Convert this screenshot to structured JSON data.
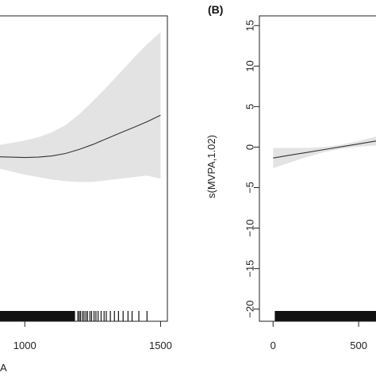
{
  "chart_data": [
    {
      "panel": "",
      "type": "line",
      "xlabel": "A",
      "ylabel": "",
      "xlim": [
        675,
        1525
      ],
      "ylim": [
        -20.5,
        17
      ],
      "x_ticks": [
        1000,
        1500
      ],
      "y_ticks": [],
      "series": [
        {
          "x": [
            680,
            750,
            800,
            850,
            900,
            950,
            1000,
            1050,
            1100,
            1150,
            1200,
            1250,
            1300,
            1350,
            1400,
            1450,
            1500
          ],
          "y": [
            -0.1,
            -0.1,
            -0.15,
            -0.2,
            -0.3,
            -0.35,
            -0.4,
            -0.35,
            -0.2,
            0.1,
            0.6,
            1.2,
            1.9,
            2.6,
            3.3,
            4.0,
            4.8
          ]
        }
      ],
      "ci_upper": [
        0.5,
        0.6,
        0.7,
        0.9,
        1.1,
        1.4,
        1.7,
        2.1,
        2.7,
        3.6,
        4.9,
        6.5,
        8.2,
        10.0,
        11.8,
        13.5,
        15.0
      ],
      "ci_lower": [
        -0.7,
        -0.8,
        -1.0,
        -1.3,
        -1.7,
        -2.1,
        -2.5,
        -2.8,
        -3.1,
        -3.3,
        -3.4,
        -3.4,
        -3.2,
        -3.0,
        -2.8,
        -2.6,
        -3.0
      ],
      "rug": [
        1195,
        1200,
        1205,
        1212,
        1218,
        1225,
        1231,
        1240,
        1246,
        1255,
        1262,
        1270,
        1281,
        1292,
        1300,
        1315,
        1330,
        1345,
        1362,
        1380,
        1395,
        1420,
        1450
      ],
      "rug_dense_range": [
        675,
        1185
      ]
    },
    {
      "panel": "(B)",
      "type": "line",
      "xlabel": "",
      "ylabel": "s(MVPA,1.02)",
      "xlim": [
        -80,
        1000
      ],
      "ylim": [
        -21.5,
        16.2
      ],
      "x_ticks": [
        0,
        500
      ],
      "y_ticks": [
        15,
        10,
        5,
        0,
        -5,
        -10,
        -15,
        -20
      ],
      "series": [
        {
          "x": [
            0,
            100,
            200,
            300,
            400,
            500,
            600,
            700,
            800
          ],
          "y": [
            -1.35,
            -1.0,
            -0.65,
            -0.3,
            0.05,
            0.4,
            0.75,
            1.1,
            1.45
          ]
        }
      ],
      "ci_upper": [
        -0.1,
        -0.1,
        -0.1,
        0.0,
        0.3,
        0.75,
        1.3,
        1.9,
        2.6
      ],
      "ci_lower": [
        -2.6,
        -1.9,
        -1.2,
        -0.6,
        -0.2,
        0.05,
        0.2,
        0.3,
        0.3
      ],
      "rug": [],
      "rug_dense_range": [
        10,
        1000
      ]
    }
  ]
}
